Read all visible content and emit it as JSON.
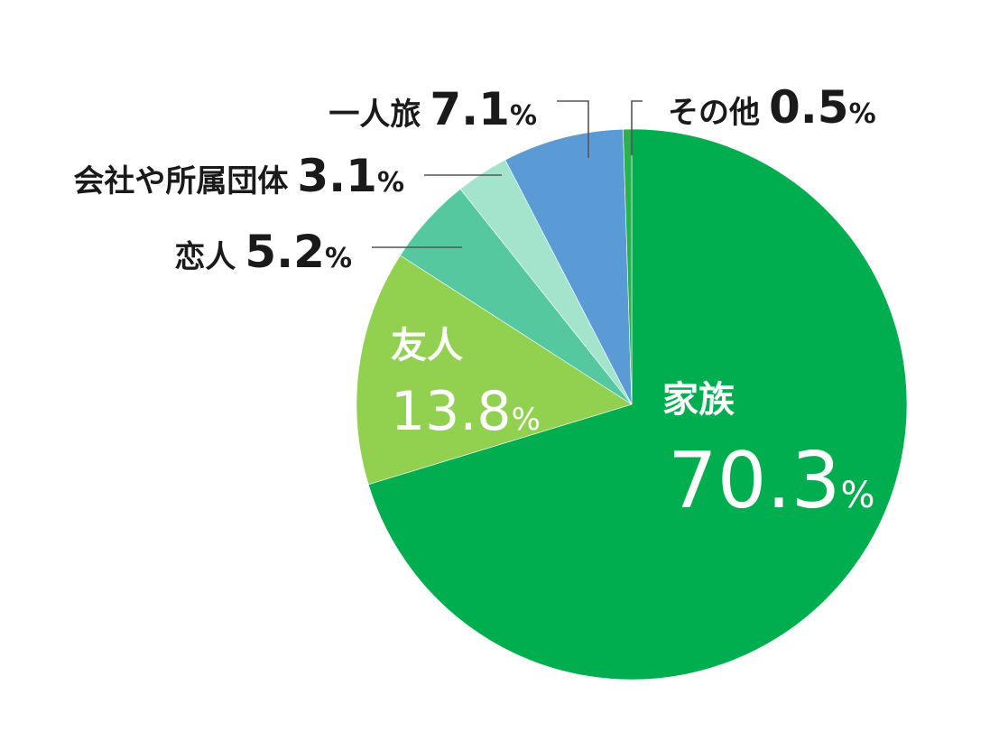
{
  "chart_data": {
    "type": "pie",
    "title": "",
    "unit": "%",
    "legend": "none",
    "slices": [
      {
        "label": "家族",
        "value": 70.3,
        "value_text": "70.3",
        "color": "#00ad4f"
      },
      {
        "label": "友人",
        "value": 13.8,
        "value_text": "13.8",
        "color": "#92d050"
      },
      {
        "label": "恋人",
        "value": 5.2,
        "value_text": "5.2",
        "color": "#55c8a0"
      },
      {
        "label": "会社や所属団体",
        "value": 3.1,
        "value_text": "3.1",
        "color": "#a4e4cc"
      },
      {
        "label": "一人旅",
        "value": 7.1,
        "value_text": "7.1",
        "color": "#5b9bd5"
      },
      {
        "label": "その他",
        "value": 0.5,
        "value_text": "0.5",
        "color": "#2bb24c"
      }
    ]
  }
}
